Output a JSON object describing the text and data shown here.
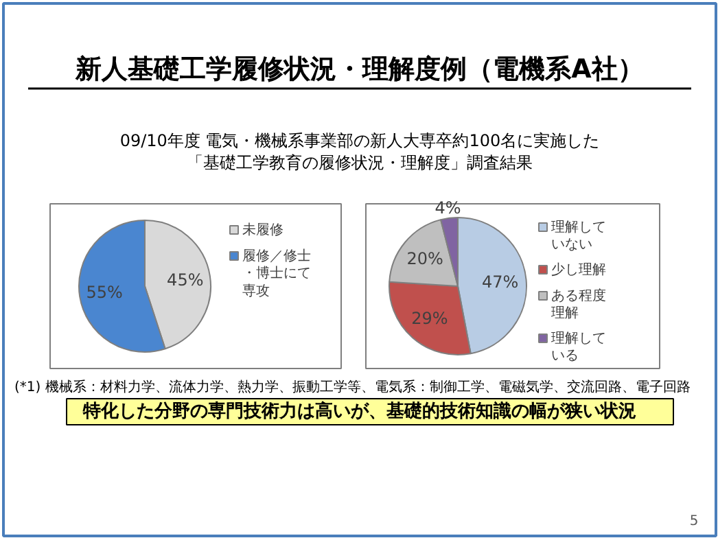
{
  "chart_data": [
    {
      "type": "pie",
      "title": "新人基礎工学履修状況・理解度例（電機系A社）",
      "subtitle": "09/10年度 電気・機械系事業部の新人大専卒約100名に実施した「基礎工学教育の履修状況・理解度」調査結果",
      "categories": [
        "未履修",
        "履修／修士・博士にて専攻"
      ],
      "values": [
        45,
        55
      ],
      "colors": [
        "#d9d9d9",
        "#4a86d0"
      ],
      "value_labels": [
        "45%",
        "55%"
      ],
      "legend": "right"
    },
    {
      "type": "pie",
      "categories": [
        "理解していない",
        "少し理解",
        "ある程度理解",
        "理解している"
      ],
      "values": [
        47,
        29,
        20,
        4
      ],
      "colors": [
        "#b8cce4",
        "#c0504d",
        "#bfbfbf",
        "#8064a2"
      ],
      "value_labels": [
        "47%",
        "29%",
        "20%",
        "4%"
      ],
      "legend": "right",
      "annotations": [
        "(*1) 機械系：材料力学、流体力学、熱力学、振動工学等、電気系：制御工学、電磁気学、交流回路、電子回路",
        "特化した分野の専門技術力は高いが、基礎的技術知識の幅が狭い状況",
        "5"
      ]
    }
  ]
}
